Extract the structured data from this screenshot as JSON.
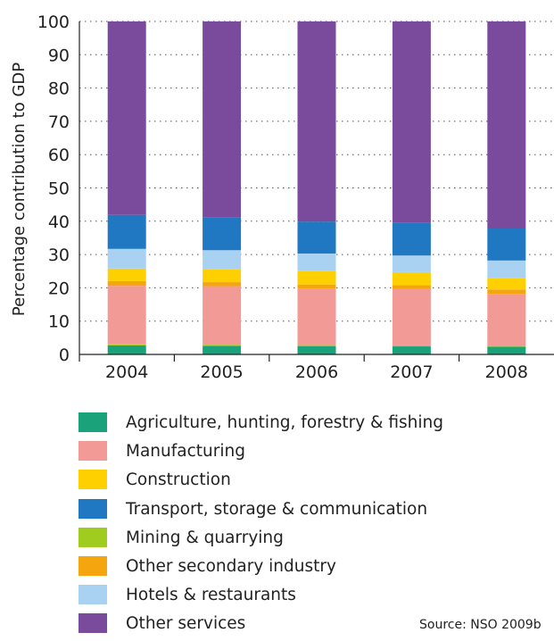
{
  "chart_data": {
    "type": "bar",
    "stacked": true,
    "categories": [
      "2004",
      "2005",
      "2006",
      "2007",
      "2008"
    ],
    "ylabel": "Percentage contribution to GDP",
    "xlabel": "",
    "ylim": [
      0,
      100
    ],
    "yticks": [
      "0",
      "10",
      "20",
      "30",
      "40",
      "50",
      "60",
      "70",
      "80",
      "90",
      "100"
    ],
    "grid": "horizontal dotted",
    "legend_position": "bottom",
    "series": [
      {
        "name": "Agriculture, hunting, forestry & fishing",
        "color": "#1aa37a",
        "values": [
          2.7,
          2.6,
          2.5,
          2.4,
          2.3
        ]
      },
      {
        "name": "Manufacturing",
        "color": "#f29a96",
        "values": [
          17.6,
          17.6,
          17.0,
          16.9,
          15.6
        ]
      },
      {
        "name": "Construction",
        "color": "#ffd000",
        "values": [
          3.8,
          3.8,
          4.0,
          3.9,
          3.5
        ]
      },
      {
        "name": "Transport, storage & communication",
        "color": "#1f78c1",
        "values": [
          10.2,
          9.8,
          9.6,
          9.8,
          9.6
        ]
      },
      {
        "name": "Mining & quarrying",
        "color": "#9fcc1f",
        "values": [
          0.3,
          0.3,
          0.3,
          0.3,
          0.3
        ]
      },
      {
        "name": "Other secondary industry",
        "color": "#f5a60f",
        "values": [
          1.4,
          1.2,
          1.2,
          1.2,
          1.3
        ]
      },
      {
        "name": "Hotels & restaurants",
        "color": "#a9d2f2",
        "values": [
          5.9,
          5.8,
          5.3,
          5.0,
          5.2
        ]
      },
      {
        "name": "Other services",
        "color": "#7a4a9c",
        "values": [
          58.1,
          58.9,
          60.1,
          60.5,
          62.2
        ]
      }
    ],
    "stack_order": [
      "Agriculture, hunting, forestry & fishing",
      "Mining & quarrying",
      "Manufacturing",
      "Other secondary industry",
      "Construction",
      "Hotels & restaurants",
      "Transport, storage & communication",
      "Other services"
    ]
  },
  "source": "Source: NSO 2009b"
}
